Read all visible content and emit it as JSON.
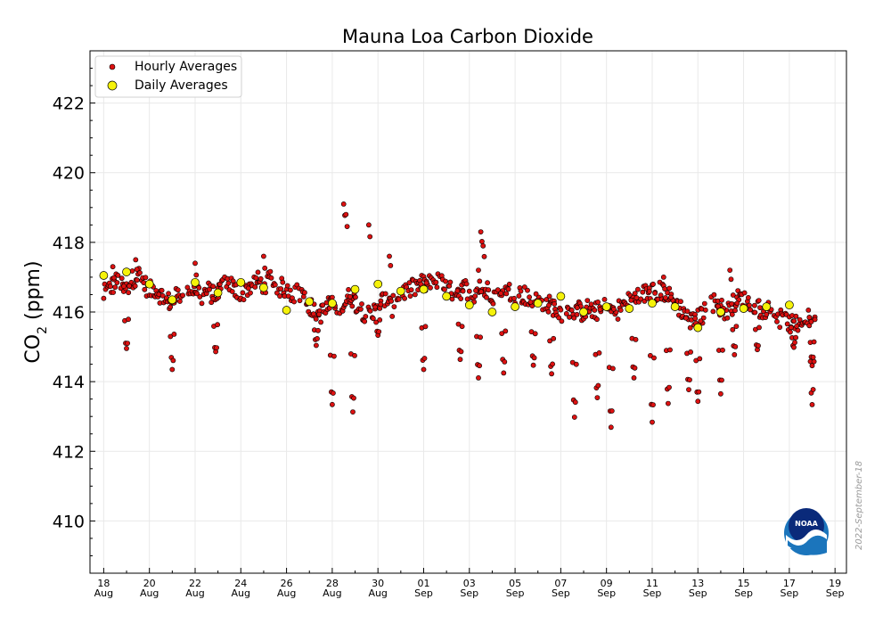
{
  "chart_data": {
    "type": "scatter",
    "title": "Mauna Loa Carbon Dioxide",
    "ylabel": "CO2 (ppm)",
    "ylabel_main": "CO",
    "ylabel_sub": "2",
    "ylabel_unit": " (ppm)",
    "xlabel": "",
    "ylim": [
      408.5,
      423.5
    ],
    "xlim": [
      -0.6,
      32.5
    ],
    "yticks": [
      410,
      412,
      414,
      416,
      418,
      420,
      422
    ],
    "xticks": [
      {
        "day": 0,
        "line1": "18",
        "line2": "Aug"
      },
      {
        "day": 2,
        "line1": "20",
        "line2": "Aug"
      },
      {
        "day": 4,
        "line1": "22",
        "line2": "Aug"
      },
      {
        "day": 6,
        "line1": "24",
        "line2": "Aug"
      },
      {
        "day": 8,
        "line1": "26",
        "line2": "Aug"
      },
      {
        "day": 10,
        "line1": "28",
        "line2": "Aug"
      },
      {
        "day": 12,
        "line1": "30",
        "line2": "Aug"
      },
      {
        "day": 14,
        "line1": "01",
        "line2": "Sep"
      },
      {
        "day": 16,
        "line1": "03",
        "line2": "Sep"
      },
      {
        "day": 18,
        "line1": "05",
        "line2": "Sep"
      },
      {
        "day": 20,
        "line1": "07",
        "line2": "Sep"
      },
      {
        "day": 22,
        "line1": "09",
        "line2": "Sep"
      },
      {
        "day": 24,
        "line1": "11",
        "line2": "Sep"
      },
      {
        "day": 26,
        "line1": "13",
        "line2": "Sep"
      },
      {
        "day": 28,
        "line1": "15",
        "line2": "Sep"
      },
      {
        "day": 30,
        "line1": "17",
        "line2": "Sep"
      },
      {
        "day": 32,
        "line1": "19",
        "line2": "Sep"
      }
    ],
    "x_units": "days since 18 Aug",
    "legend": {
      "position": "top-left",
      "entries": [
        "Hourly Averages",
        "Daily Averages"
      ]
    },
    "grid": true,
    "series": [
      {
        "name": "Daily Averages",
        "color": "#f5f20a",
        "x": [
          0.0,
          1.0,
          2.0,
          3.0,
          4.0,
          5.0,
          6.0,
          7.0,
          8.0,
          9.0,
          10.0,
          11.0,
          12.0,
          13.0,
          14.0,
          15.0,
          16.0,
          17.0,
          18.0,
          19.0,
          20.0,
          21.0,
          22.0,
          23.0,
          24.0,
          25.0,
          26.0,
          27.0,
          28.0,
          29.0,
          30.0
        ],
        "y": [
          417.05,
          417.15,
          416.8,
          416.35,
          416.85,
          416.55,
          416.85,
          416.7,
          416.05,
          416.3,
          416.25,
          416.65,
          416.8,
          416.6,
          416.65,
          416.45,
          416.2,
          416.0,
          416.15,
          416.25,
          416.45,
          416.0,
          416.15,
          416.1,
          416.25,
          416.15,
          415.55,
          416.0,
          416.1,
          416.15,
          416.2
        ],
        "note": "Daily average markers drawn at each day index listed in x."
      },
      {
        "name": "Hourly Averages",
        "color": "#dd1111",
        "anchors": [
          [
            0.0,
            416.5
          ],
          [
            0.3,
            416.7
          ],
          [
            0.6,
            416.9
          ],
          [
            0.9,
            416.6
          ],
          [
            1.0,
            416.7
          ],
          [
            1.2,
            416.9
          ],
          [
            1.5,
            417.1
          ],
          [
            1.7,
            416.9
          ],
          [
            2.0,
            416.6
          ],
          [
            2.2,
            416.7
          ],
          [
            2.5,
            416.5
          ],
          [
            2.7,
            416.3
          ],
          [
            3.0,
            416.3
          ],
          [
            3.3,
            416.5
          ],
          [
            3.7,
            416.6
          ],
          [
            4.0,
            416.7
          ],
          [
            4.3,
            416.5
          ],
          [
            4.6,
            416.6
          ],
          [
            4.9,
            416.4
          ],
          [
            5.2,
            416.9
          ],
          [
            5.5,
            416.8
          ],
          [
            5.8,
            416.6
          ],
          [
            6.0,
            416.4
          ],
          [
            6.3,
            416.7
          ],
          [
            6.7,
            416.9
          ],
          [
            7.0,
            416.8
          ],
          [
            7.3,
            416.9
          ],
          [
            7.7,
            416.7
          ],
          [
            8.0,
            416.7
          ],
          [
            8.3,
            416.5
          ],
          [
            8.6,
            416.6
          ],
          [
            8.8,
            416.4
          ],
          [
            9.0,
            416.2
          ],
          [
            9.3,
            415.9
          ],
          [
            9.6,
            416.0
          ],
          [
            9.9,
            416.2
          ],
          [
            10.2,
            416.1
          ],
          [
            10.5,
            416.2
          ],
          [
            10.8,
            416.5
          ],
          [
            11.1,
            416.2
          ],
          [
            11.4,
            416.0
          ],
          [
            11.7,
            415.8
          ],
          [
            12.0,
            416.2
          ],
          [
            12.3,
            416.4
          ],
          [
            12.6,
            416.1
          ],
          [
            12.8,
            416.4
          ],
          [
            13.0,
            416.6
          ],
          [
            13.3,
            416.6
          ],
          [
            13.6,
            416.7
          ],
          [
            13.9,
            416.8
          ],
          [
            14.2,
            416.8
          ],
          [
            14.5,
            416.9
          ],
          [
            14.8,
            416.8
          ],
          [
            15.1,
            416.6
          ],
          [
            15.5,
            416.6
          ],
          [
            15.8,
            416.7
          ],
          [
            16.2,
            416.5
          ],
          [
            16.5,
            416.6
          ],
          [
            16.9,
            416.6
          ],
          [
            17.2,
            416.4
          ],
          [
            17.5,
            416.5
          ],
          [
            17.8,
            416.6
          ],
          [
            18.1,
            416.5
          ],
          [
            18.4,
            416.5
          ],
          [
            18.7,
            416.3
          ],
          [
            19.0,
            416.3
          ],
          [
            19.3,
            416.2
          ],
          [
            19.6,
            416.2
          ],
          [
            20.0,
            416.0
          ],
          [
            20.3,
            416.0
          ],
          [
            20.6,
            416.1
          ],
          [
            20.9,
            416.0
          ],
          [
            21.2,
            416.1
          ],
          [
            21.5,
            416.0
          ],
          [
            21.8,
            416.1
          ],
          [
            22.1,
            416.1
          ],
          [
            22.4,
            416.0
          ],
          [
            22.7,
            416.2
          ],
          [
            23.0,
            416.3
          ],
          [
            23.3,
            416.4
          ],
          [
            23.6,
            416.5
          ],
          [
            23.9,
            416.6
          ],
          [
            24.2,
            416.6
          ],
          [
            24.5,
            416.6
          ],
          [
            24.8,
            416.4
          ],
          [
            25.1,
            416.2
          ],
          [
            25.4,
            416.0
          ],
          [
            25.7,
            415.7
          ],
          [
            26.0,
            415.8
          ],
          [
            26.3,
            416.0
          ],
          [
            26.6,
            416.3
          ],
          [
            26.9,
            416.2
          ],
          [
            27.2,
            416.0
          ],
          [
            27.5,
            416.2
          ],
          [
            27.8,
            416.4
          ],
          [
            28.1,
            416.3
          ],
          [
            28.4,
            416.2
          ],
          [
            28.7,
            416.1
          ],
          [
            29.0,
            416.1
          ],
          [
            29.3,
            416.0
          ],
          [
            29.6,
            415.8
          ],
          [
            29.9,
            415.7
          ],
          [
            30.2,
            415.6
          ],
          [
            30.5,
            415.7
          ],
          [
            30.8,
            415.8
          ],
          [
            31.0,
            415.8
          ]
        ],
        "dips": [
          [
            1.0,
            414.9
          ],
          [
            3.0,
            414.4
          ],
          [
            4.9,
            414.8
          ],
          [
            9.3,
            415.1
          ],
          [
            10.0,
            413.3
          ],
          [
            10.9,
            413.1
          ],
          [
            12.0,
            415.3
          ],
          [
            14.0,
            414.3
          ],
          [
            15.6,
            414.6
          ],
          [
            16.4,
            414.1
          ],
          [
            17.5,
            414.3
          ],
          [
            18.8,
            414.5
          ],
          [
            19.6,
            414.2
          ],
          [
            20.6,
            413.0
          ],
          [
            21.6,
            413.5
          ],
          [
            22.2,
            412.7
          ],
          [
            23.2,
            414.1
          ],
          [
            24.0,
            412.8
          ],
          [
            24.7,
            413.4
          ],
          [
            25.6,
            413.8
          ],
          [
            26.0,
            413.4
          ],
          [
            27.0,
            413.7
          ],
          [
            27.6,
            414.8
          ],
          [
            28.6,
            414.9
          ],
          [
            30.2,
            415.0
          ],
          [
            31.0,
            413.4
          ],
          [
            31.0,
            414.5
          ]
        ],
        "spikes": [
          [
            0.4,
            417.3
          ],
          [
            1.4,
            417.5
          ],
          [
            4.0,
            417.4
          ],
          [
            7.0,
            417.6
          ],
          [
            10.5,
            419.1
          ],
          [
            10.6,
            418.8
          ],
          [
            11.6,
            418.5
          ],
          [
            12.5,
            417.6
          ],
          [
            16.5,
            418.3
          ],
          [
            16.6,
            417.9
          ],
          [
            16.4,
            417.2
          ],
          [
            24.5,
            417.0
          ],
          [
            27.4,
            417.2
          ]
        ]
      }
    ]
  },
  "watermark_date": "2022-September-18",
  "logo_text": "NOAA"
}
